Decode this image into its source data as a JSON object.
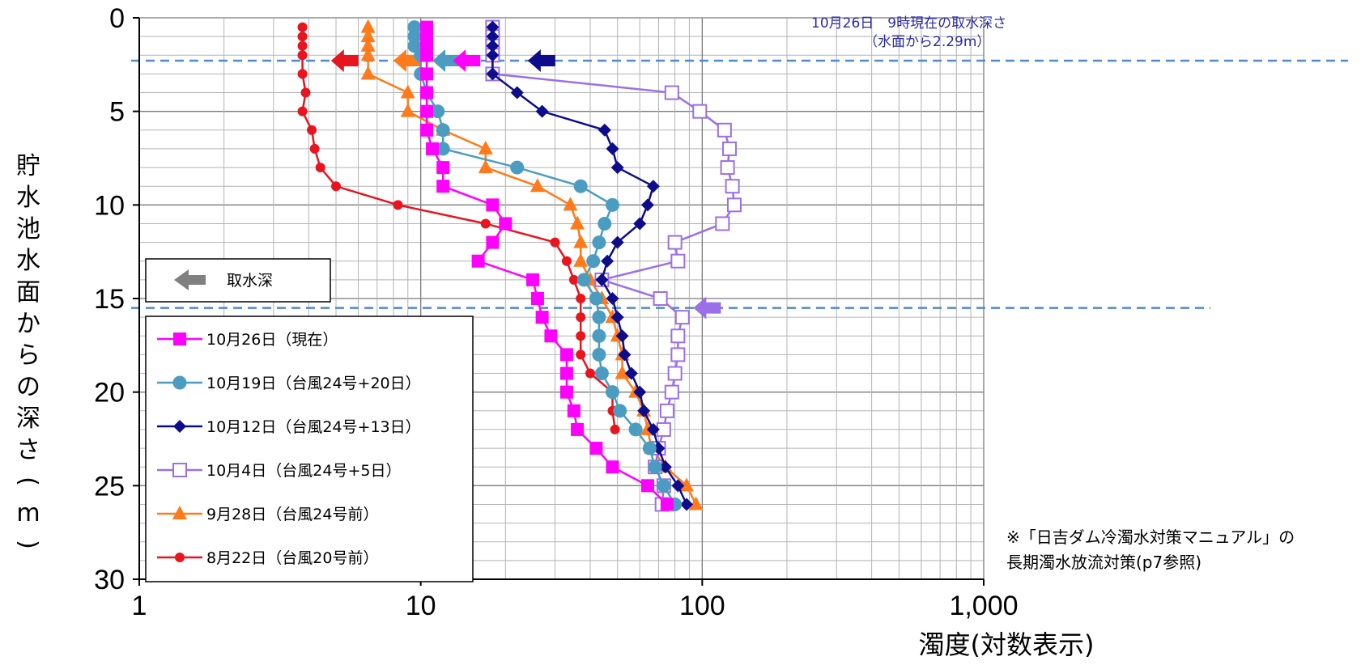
{
  "chart_data": {
    "type": "line",
    "xlabel": "濁度(対数表示)",
    "ylabel": "貯水池水面からの深さ(m)",
    "x_scale": "log",
    "xlim": [
      1,
      1000
    ],
    "ylim": [
      0,
      30
    ],
    "y_inverted": true,
    "x_ticks": [
      "1",
      "10",
      "100",
      "1,000"
    ],
    "y_ticks": [
      "0",
      "5",
      "10",
      "15",
      "20",
      "25",
      "30"
    ],
    "grid": true,
    "annotation_line1": "10月26日　9時現在の取水深さ",
    "annotation_line2": "（水面から2.29m）",
    "intake_depths": [
      2.29,
      15.5
    ],
    "intake_legend_label": "取水深",
    "note_line1": "※「日吉ダム冷濁水対策マニュアル」の",
    "note_line2": "長期濁水放流対策(p7参照)",
    "legend_position": "lower-left",
    "series": [
      {
        "name": "10月26日（現在）",
        "color": "#ff00ff",
        "marker": "square",
        "intake_arrow_x": 13,
        "points": [
          [
            10.5,
            0.5
          ],
          [
            10.5,
            1
          ],
          [
            10.5,
            1.5
          ],
          [
            10.5,
            2
          ],
          [
            10.5,
            3
          ],
          [
            10.5,
            4
          ],
          [
            10.5,
            5
          ],
          [
            10.5,
            6
          ],
          [
            11,
            7
          ],
          [
            12,
            8
          ],
          [
            12,
            9
          ],
          [
            18,
            10
          ],
          [
            20,
            11
          ],
          [
            18,
            12
          ],
          [
            16,
            13
          ],
          [
            25,
            14
          ],
          [
            26,
            15
          ],
          [
            27,
            16
          ],
          [
            29,
            17
          ],
          [
            33,
            18
          ],
          [
            33,
            19
          ],
          [
            33,
            20
          ],
          [
            35,
            21
          ],
          [
            36,
            22
          ],
          [
            42,
            23
          ],
          [
            48,
            24
          ],
          [
            64,
            25
          ],
          [
            75,
            26
          ]
        ]
      },
      {
        "name": "10月19日（台風24号+20日）",
        "color": "#4a9dc0",
        "marker": "circle",
        "intake_arrow_x": 11,
        "points": [
          [
            9.5,
            0.5
          ],
          [
            9.5,
            1
          ],
          [
            9.5,
            1.5
          ],
          [
            10,
            2
          ],
          [
            10,
            3
          ],
          [
            10.5,
            4
          ],
          [
            11.5,
            5
          ],
          [
            12,
            6
          ],
          [
            12,
            7
          ],
          [
            22,
            8
          ],
          [
            37,
            9
          ],
          [
            48,
            10
          ],
          [
            45,
            11
          ],
          [
            43,
            12
          ],
          [
            41,
            13
          ],
          [
            38,
            14
          ],
          [
            42,
            15
          ],
          [
            43,
            16
          ],
          [
            43,
            17
          ],
          [
            43,
            18
          ],
          [
            44,
            19
          ],
          [
            48,
            20
          ],
          [
            51,
            21
          ],
          [
            58,
            22
          ],
          [
            65,
            23
          ],
          [
            68,
            24
          ],
          [
            73,
            25
          ],
          [
            80,
            26
          ]
        ]
      },
      {
        "name": "10月12日（台風24号+13日）",
        "color": "#0d0d8c",
        "marker": "diamond",
        "intake_arrow_x": 24,
        "points": [
          [
            18,
            0.5
          ],
          [
            18,
            1
          ],
          [
            18,
            1.5
          ],
          [
            18,
            2
          ],
          [
            18,
            3
          ],
          [
            22,
            4
          ],
          [
            27,
            5
          ],
          [
            45,
            6
          ],
          [
            48,
            7
          ],
          [
            50,
            8
          ],
          [
            67,
            9
          ],
          [
            64,
            10
          ],
          [
            60,
            11
          ],
          [
            50,
            12
          ],
          [
            46,
            13
          ],
          [
            44,
            14
          ],
          [
            48,
            15
          ],
          [
            50,
            16
          ],
          [
            52,
            17
          ],
          [
            53,
            18
          ],
          [
            56,
            19
          ],
          [
            60,
            20
          ],
          [
            62,
            21
          ],
          [
            67,
            22
          ],
          [
            70,
            23
          ],
          [
            74,
            24
          ],
          [
            82,
            25
          ],
          [
            88,
            26
          ]
        ]
      },
      {
        "name": "10月4日（台風24号+5日）",
        "color": "#9b6fe8",
        "marker": "square-open",
        "intake_arrow_x": 93,
        "points": [
          [
            18,
            0.5
          ],
          [
            18,
            1
          ],
          [
            18,
            1.5
          ],
          [
            18,
            2
          ],
          [
            18,
            3
          ],
          [
            78,
            4
          ],
          [
            98,
            5
          ],
          [
            120,
            6
          ],
          [
            125,
            7
          ],
          [
            123,
            8
          ],
          [
            128,
            9
          ],
          [
            130,
            10
          ],
          [
            118,
            11
          ],
          [
            80,
            12
          ],
          [
            82,
            13
          ],
          [
            44,
            14
          ],
          [
            71,
            15
          ],
          [
            85,
            16
          ],
          [
            82,
            17
          ],
          [
            82,
            18
          ],
          [
            80,
            19
          ],
          [
            78,
            20
          ],
          [
            75,
            21
          ],
          [
            73,
            22
          ],
          [
            70,
            23
          ],
          [
            68,
            24
          ],
          [
            73,
            25
          ],
          [
            72,
            26
          ]
        ]
      },
      {
        "name": "9月28日（台風24号前）",
        "color": "#ff7a1a",
        "marker": "triangle",
        "intake_arrow_x": 8,
        "points": [
          [
            6.5,
            0.5
          ],
          [
            6.5,
            1
          ],
          [
            6.5,
            1.5
          ],
          [
            6.5,
            2
          ],
          [
            6.5,
            3
          ],
          [
            9,
            4
          ],
          [
            9,
            5
          ],
          [
            12,
            6
          ],
          [
            17,
            7
          ],
          [
            17,
            8
          ],
          [
            26,
            9
          ],
          [
            34,
            10
          ],
          [
            36,
            11
          ],
          [
            37,
            12
          ],
          [
            37,
            13
          ],
          [
            40,
            14
          ],
          [
            44,
            15
          ],
          [
            48,
            16
          ],
          [
            50,
            17
          ],
          [
            52,
            18
          ],
          [
            52,
            19
          ],
          [
            58,
            20
          ],
          [
            62,
            21
          ],
          [
            64,
            22
          ],
          [
            66,
            23
          ],
          [
            74,
            24
          ],
          [
            88,
            25
          ],
          [
            95,
            26
          ]
        ]
      },
      {
        "name": "8月22日（台風20号前）",
        "color": "#e8141e",
        "marker": "circle",
        "intake_arrow_x": 4.8,
        "points": [
          [
            3.8,
            0.5
          ],
          [
            3.8,
            1
          ],
          [
            3.8,
            1.5
          ],
          [
            3.8,
            2
          ],
          [
            3.8,
            3
          ],
          [
            3.9,
            4
          ],
          [
            3.8,
            5
          ],
          [
            4.1,
            6
          ],
          [
            4.2,
            7
          ],
          [
            4.4,
            8
          ],
          [
            5,
            9
          ],
          [
            8.3,
            10
          ],
          [
            17,
            11
          ],
          [
            30,
            12
          ],
          [
            33,
            13
          ],
          [
            35,
            14
          ],
          [
            37,
            15
          ],
          [
            37,
            16
          ],
          [
            37,
            17
          ],
          [
            37,
            18
          ],
          [
            40,
            19
          ],
          [
            48,
            20
          ],
          [
            48,
            21
          ],
          [
            49,
            22
          ]
        ]
      }
    ]
  }
}
